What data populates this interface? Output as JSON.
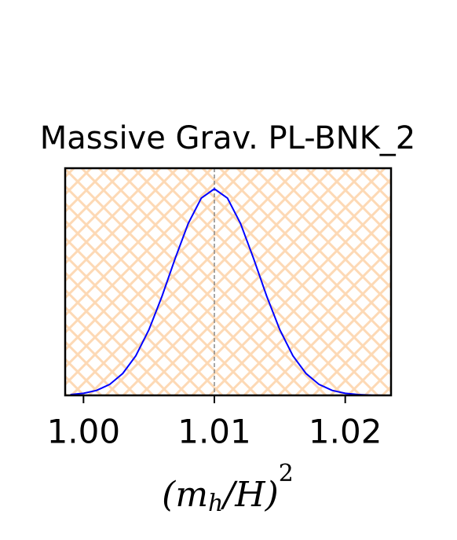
{
  "chart_data": {
    "type": "line",
    "title": "Massive Grav. PL-BNK_2",
    "xlabel": "(m_h/H)^2",
    "x": [
      0.999,
      1.0,
      1.001,
      1.002,
      1.003,
      1.004,
      1.005,
      1.006,
      1.007,
      1.008,
      1.009,
      1.01,
      1.011,
      1.012,
      1.013,
      1.014,
      1.015,
      1.016,
      1.017,
      1.018,
      1.019,
      1.02,
      1.021,
      1.022,
      1.023
    ],
    "series": [
      {
        "color": "#0000ff",
        "values": [
          0.004,
          0.01,
          0.024,
          0.053,
          0.106,
          0.192,
          0.318,
          0.48,
          0.662,
          0.832,
          0.955,
          1.0,
          0.955,
          0.832,
          0.662,
          0.48,
          0.318,
          0.192,
          0.106,
          0.053,
          0.024,
          0.01,
          0.004,
          0.001,
          0.0
        ]
      }
    ],
    "vline": 1.01,
    "xlim": [
      0.9986,
      1.0235
    ],
    "ylim": [
      0,
      1.1
    ],
    "xticks": [
      {
        "value": 1.0,
        "label": "1.00"
      },
      {
        "value": 1.01,
        "label": "1.01"
      },
      {
        "value": 1.02,
        "label": "1.02"
      }
    ],
    "background_hatch_color": "#fdd9b5"
  }
}
